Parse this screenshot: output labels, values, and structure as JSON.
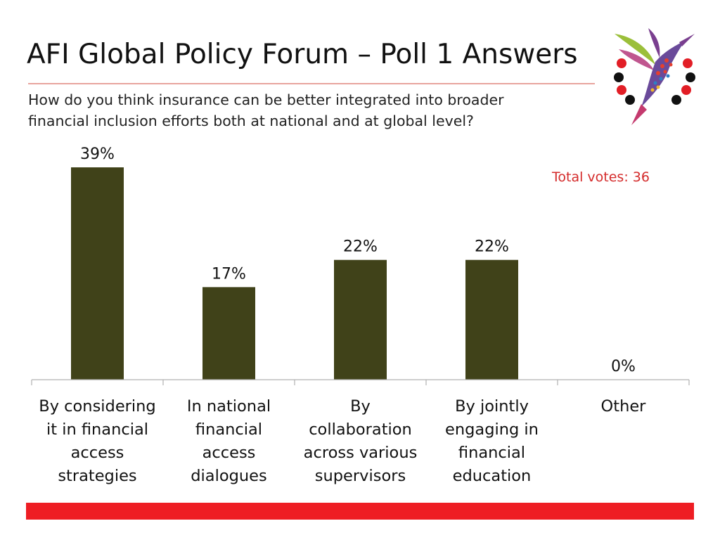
{
  "header": {
    "title": "AFI Global Policy Forum – Poll 1 Answers",
    "subtitle_line1": "How do you think insurance can be better integrated into broader",
    "subtitle_line2": "financial inclusion efforts both at national and at global level?"
  },
  "annotation": {
    "total_votes": "Total votes: 36"
  },
  "colors": {
    "bar": "#404219",
    "accent_red": "#ee1d23",
    "title_rule": "#e8a49e"
  },
  "chart_data": {
    "type": "bar",
    "title": "",
    "xlabel": "",
    "ylabel": "",
    "ylim": [
      0,
      40
    ],
    "grid": false,
    "legend": "none",
    "categories": [
      "By considering it in financial access strategies",
      "In national financial access dialogues",
      "By collaboration across various supervisors",
      "By jointly engaging in financial education",
      "Other"
    ],
    "category_lines": [
      [
        "By considering",
        "it in financial",
        "access",
        "strategies"
      ],
      [
        "In national",
        "financial",
        "access",
        "dialogues"
      ],
      [
        "By",
        "collaboration",
        "across various",
        "supervisors"
      ],
      [
        "By jointly",
        "engaging in",
        "financial",
        "education"
      ],
      [
        "Other"
      ]
    ],
    "values": [
      39,
      17,
      22,
      22,
      0
    ],
    "data_labels": [
      "39%",
      "17%",
      "22%",
      "22%",
      "0%"
    ]
  }
}
